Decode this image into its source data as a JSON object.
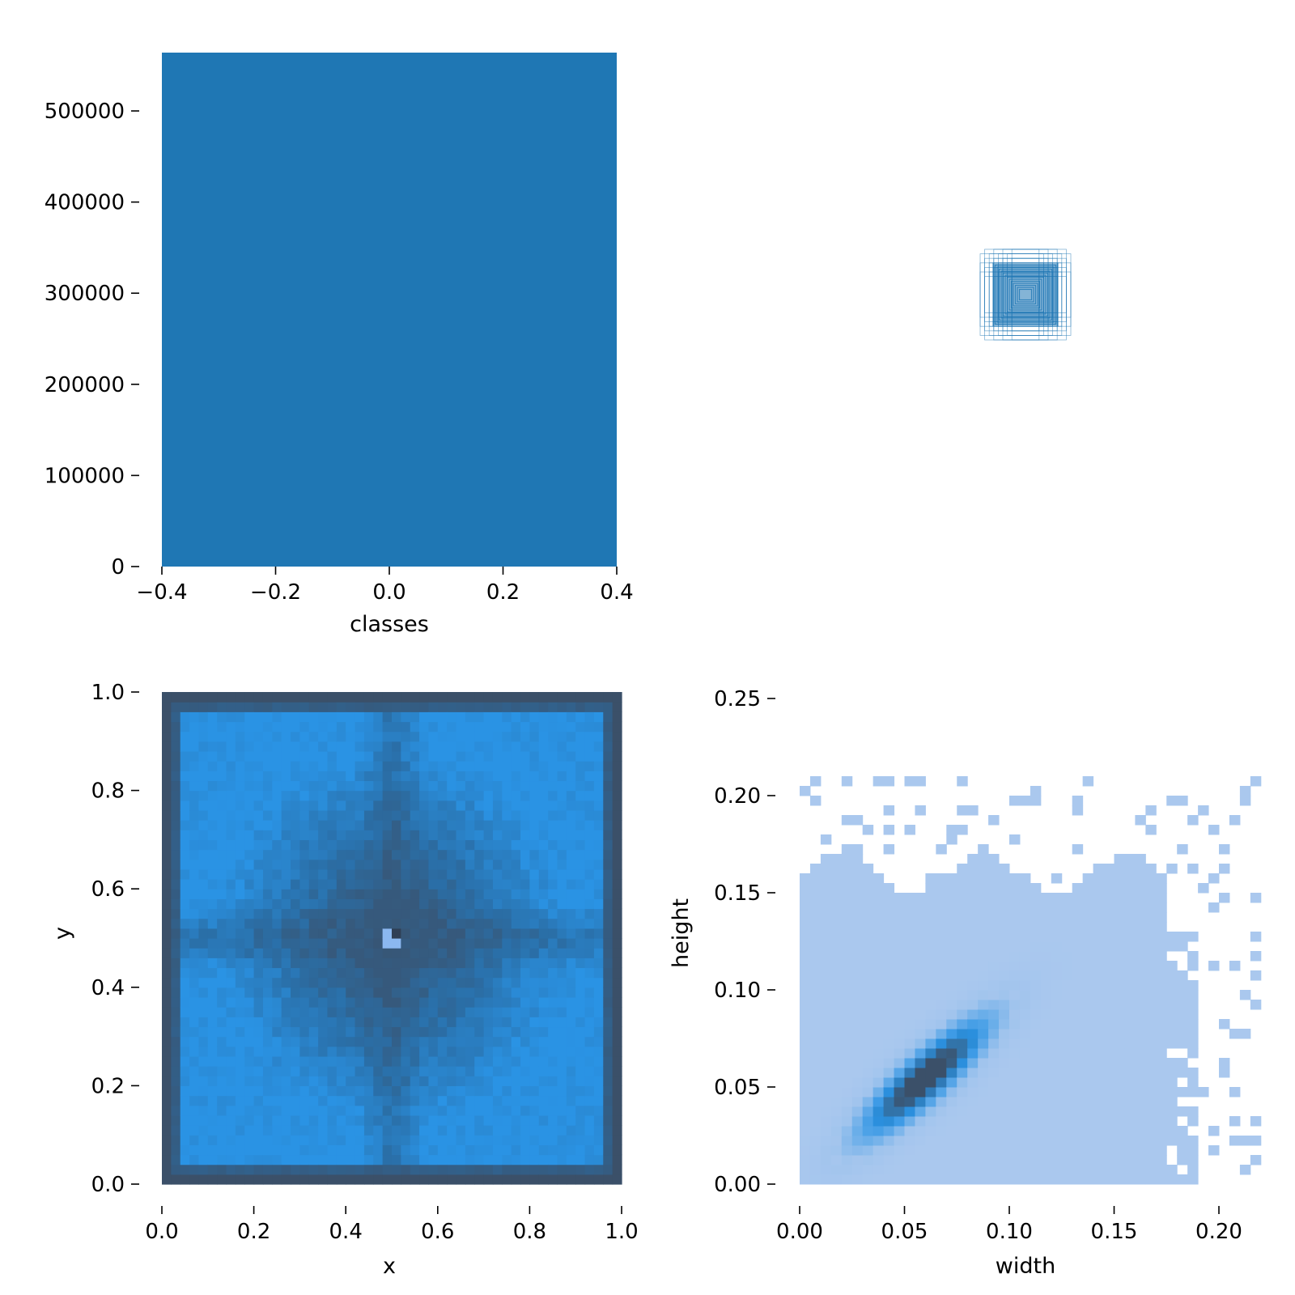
{
  "chart_data": [
    {
      "panel": "classes-histogram",
      "type": "bar",
      "xlabel": "classes",
      "ylabel": "",
      "x_ticks": [
        "−0.4",
        "−0.2",
        "0.0",
        "0.2",
        "0.4"
      ],
      "x_tick_values": [
        -0.4,
        -0.2,
        0.0,
        0.2,
        0.4
      ],
      "y_ticks": [
        "0",
        "100000",
        "200000",
        "300000",
        "400000",
        "500000"
      ],
      "y_tick_values": [
        0,
        100000,
        200000,
        300000,
        400000,
        500000
      ],
      "xlim": [
        -0.4,
        0.4
      ],
      "ylim": [
        0,
        564000
      ],
      "categories": [
        "0"
      ],
      "bars": [
        {
          "x_start": -0.4,
          "x_end": 0.4,
          "value": 564000
        }
      ],
      "color": "#1f77b4"
    },
    {
      "panel": "boxes-overlay",
      "type": "scatter",
      "xlabel": "",
      "ylabel": "",
      "description_values": {
        "center": [
          0.5,
          0.5
        ],
        "box_widths": [
          0.06,
          0.08,
          0.1,
          0.12,
          0.14,
          0.16,
          0.18,
          0.2
        ],
        "box_heights": [
          0.08,
          0.1,
          0.12,
          0.14,
          0.16,
          0.18,
          0.2
        ]
      },
      "color": "#1f77b4"
    },
    {
      "panel": "xy-heatmap",
      "type": "heatmap",
      "xlabel": "x",
      "ylabel": "y",
      "x_ticks": [
        "0.0",
        "0.2",
        "0.4",
        "0.6",
        "0.8",
        "1.0"
      ],
      "x_tick_values": [
        0.0,
        0.2,
        0.4,
        0.6,
        0.8,
        1.0
      ],
      "y_ticks": [
        "0.0",
        "0.2",
        "0.4",
        "0.6",
        "0.8",
        "1.0"
      ],
      "y_tick_values": [
        0.0,
        0.2,
        0.4,
        0.6,
        0.8,
        1.0
      ],
      "xlim": [
        0,
        1
      ],
      "ylim": [
        0,
        1
      ],
      "bins": 50,
      "colors": {
        "low": "#3b5069",
        "mid": "#2a6fa8",
        "high": "#2a93e4",
        "peak": "#8bb8f0"
      }
    },
    {
      "panel": "width-height-heatmap",
      "type": "heatmap",
      "xlabel": "width",
      "ylabel": "height",
      "x_ticks": [
        "0.00",
        "0.05",
        "0.10",
        "0.15",
        "0.20"
      ],
      "x_tick_values": [
        0.0,
        0.05,
        0.1,
        0.15,
        0.2
      ],
      "y_ticks": [
        "0.00",
        "0.05",
        "0.10",
        "0.15",
        "0.20",
        "0.25"
      ],
      "y_tick_values": [
        0.0,
        0.05,
        0.1,
        0.15,
        0.2,
        0.25
      ],
      "xlim": [
        0,
        0.22
      ],
      "ylim": [
        0,
        0.25
      ],
      "density_peak": {
        "width": 0.06,
        "height": 0.055
      },
      "colors": {
        "low": "#aac8ee",
        "mid": "#2a93e4",
        "high": "#3b5069"
      }
    }
  ]
}
